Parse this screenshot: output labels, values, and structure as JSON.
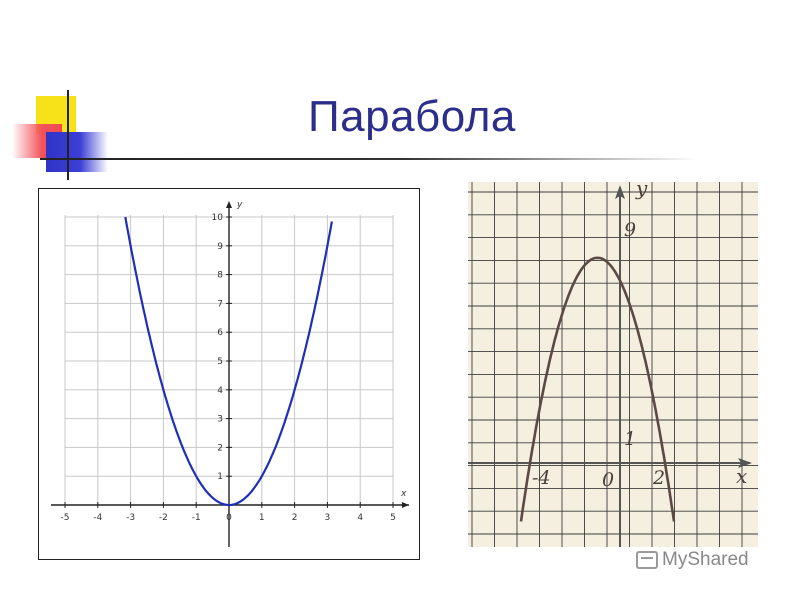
{
  "title": "Парабола",
  "watermark": "MyShared",
  "colors": {
    "title": "#2b2e8a",
    "left_curve": "#1f2fb8",
    "right_curve": "#5a4a45",
    "right_bg": "#f4efdf"
  },
  "chart_data": [
    {
      "type": "line",
      "function": "y = x^2",
      "xlabel": "x",
      "ylabel": "y",
      "xlim": [
        -5,
        5
      ],
      "ylim": [
        0,
        10
      ],
      "grid": true,
      "x_ticks": [
        "-5",
        "-4",
        "-3",
        "-2",
        "-1",
        "0",
        "1",
        "2",
        "3",
        "4",
        "5"
      ],
      "y_ticks": [
        "1",
        "2",
        "3",
        "4",
        "5",
        "6",
        "7",
        "8",
        "9",
        "10"
      ],
      "series": [
        {
          "x": [
            -3.16,
            -3,
            -2.5,
            -2,
            -1.5,
            -1,
            -0.5,
            0,
            0.5,
            1,
            1.5,
            2,
            2.5,
            3,
            3.16
          ],
          "y": [
            10,
            9,
            6.25,
            4,
            2.25,
            1,
            0.25,
            0,
            0.25,
            1,
            2.25,
            4,
            6.25,
            9,
            10
          ]
        }
      ]
    },
    {
      "type": "line",
      "function": "y = -(x+4)(x-2)",
      "xlabel": "x",
      "ylabel": "y",
      "grid": true,
      "labels": [
        "9",
        "1",
        "-4",
        "0",
        "2"
      ],
      "key_points": {
        "vertex": [
          -1,
          9
        ],
        "roots": [
          -4,
          2
        ],
        "y_intercept": [
          0,
          8
        ]
      },
      "series": [
        {
          "x": [
            -4.4,
            -4,
            -3,
            -2,
            -1,
            0,
            1,
            2,
            2.4
          ],
          "y": [
            -2.56,
            0,
            5,
            8,
            9,
            8,
            5,
            0,
            -2.56
          ]
        }
      ]
    }
  ]
}
